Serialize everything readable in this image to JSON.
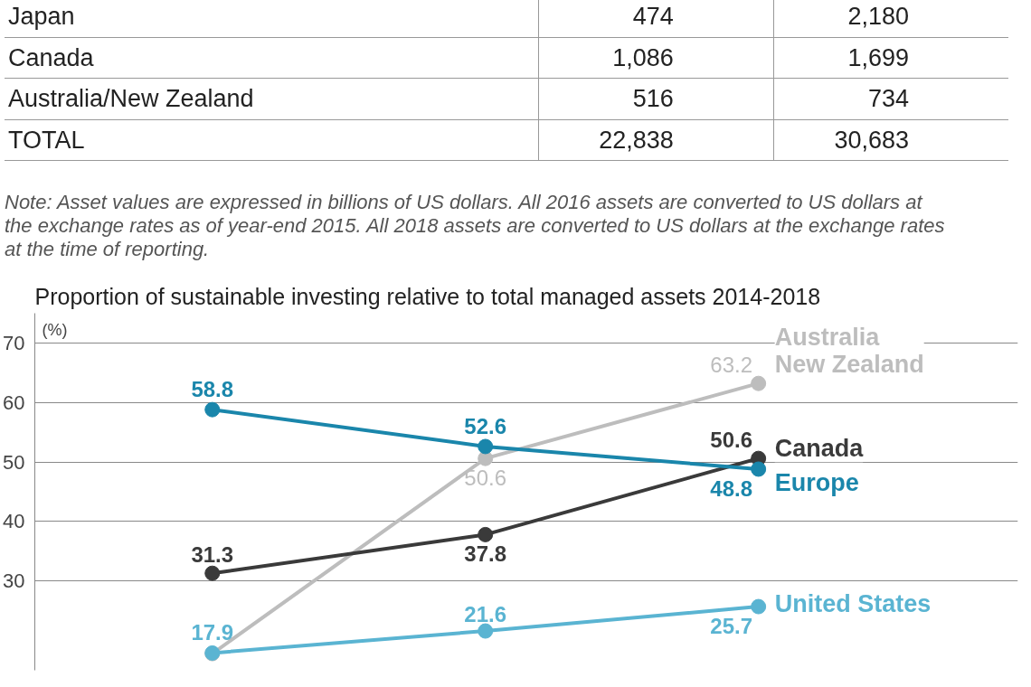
{
  "chart_data": {
    "type": "line",
    "title": "Proportion of sustainable investing relative to total managed assets 2014-2018",
    "ylabel": "(%)",
    "categories": [
      null,
      null,
      null
    ],
    "series": [
      {
        "name": "Australia\nNew Zealand",
        "color": "#bdbdbd",
        "values": [
          17.8,
          50.6,
          63.2
        ],
        "value_labels": [
          null,
          "50.6",
          "63.2"
        ]
      },
      {
        "name": "Canada",
        "color": "#3a3a3a",
        "values": [
          31.3,
          37.8,
          50.6
        ],
        "value_labels": [
          "31.3",
          "37.8",
          "50.6"
        ]
      },
      {
        "name": "Europe",
        "color": "#1a86ab",
        "values": [
          58.8,
          52.6,
          48.8
        ],
        "value_labels": [
          "58.8",
          "52.6",
          "48.8"
        ]
      },
      {
        "name": "United States",
        "color": "#5ab4d2",
        "values": [
          17.9,
          21.6,
          25.7
        ],
        "value_labels": [
          "17.9",
          "21.6",
          "25.7"
        ]
      }
    ],
    "ylim": [
      15,
      75
    ],
    "yticks": [
      30,
      40,
      50,
      60,
      70
    ],
    "grid": "y",
    "tick_labels": "y",
    "marker": "circle",
    "line_style": "solid",
    "annotations": [
      "Japan\t474\t2,180",
      "Canada\t1,086\t1,699",
      "Australia/New Zealand\t516\t734",
      "TOTAL\t22,838\t30,683",
      "Note: Asset values are expressed in billions of US dollars. All 2016 assets are converted to US dollars at the exchange rates as of year-end 2015. All 2018 assets  are converted to US dollars at the exchange rates at the time of reporting."
    ]
  }
}
